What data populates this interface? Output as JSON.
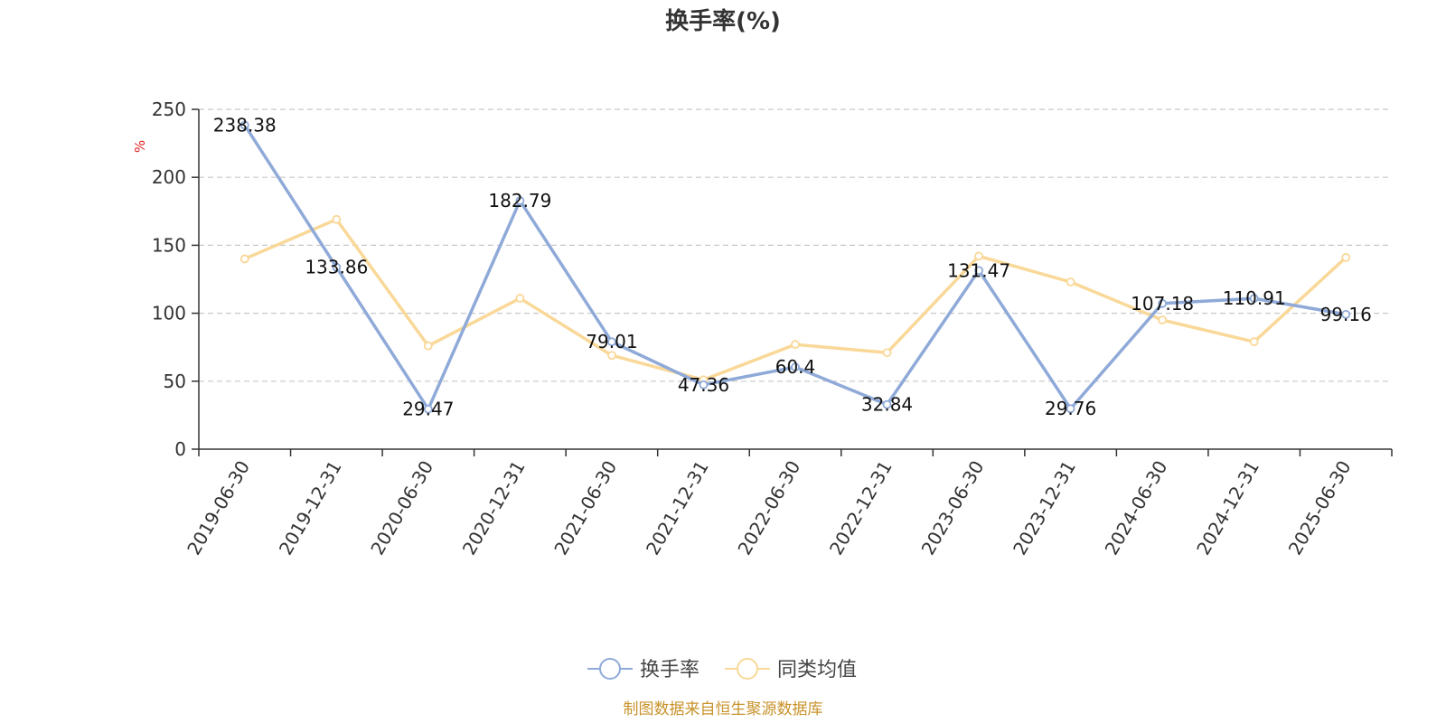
{
  "chart_data": {
    "type": "line",
    "title": "换手率(%)",
    "ylabel": "%",
    "ylim": [
      0,
      250
    ],
    "yticks": [
      0,
      50,
      100,
      150,
      200,
      250
    ],
    "categories": [
      "2019-06-30",
      "2019-12-31",
      "2020-06-30",
      "2020-12-31",
      "2021-06-30",
      "2021-12-31",
      "2022-06-30",
      "2022-12-31",
      "2023-06-30",
      "2023-12-31",
      "2024-06-30",
      "2024-12-31",
      "2025-06-30"
    ],
    "series": [
      {
        "name": "换手率",
        "color": "#8faad8",
        "values": [
          238.38,
          133.86,
          29.47,
          182.79,
          79.01,
          47.36,
          60.4,
          32.84,
          131.47,
          29.76,
          107.18,
          110.91,
          99.16
        ],
        "labels": [
          "238.38",
          "133.86",
          "29.47",
          "182.79",
          "79.01",
          "47.36",
          "60.4",
          "32.84",
          "131.47",
          "29.76",
          "107.18",
          "110.91",
          "99.16"
        ]
      },
      {
        "name": "同类均值",
        "color": "#f9d898",
        "values": [
          140,
          169,
          76,
          111,
          69,
          51,
          77,
          71,
          142,
          123,
          95,
          79,
          141
        ]
      }
    ],
    "grid": true,
    "legend": "bottom"
  },
  "source": "制图数据来自恒生聚源数据库"
}
